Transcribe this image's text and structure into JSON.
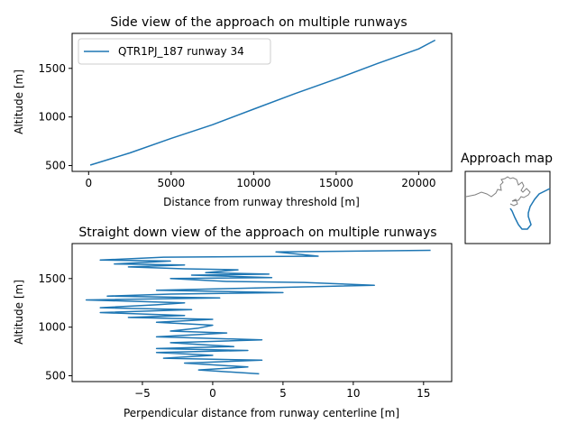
{
  "colors": {
    "series": "#1f77b4",
    "coastline": "#808080",
    "axes": "#000000"
  },
  "chart_data": [
    {
      "type": "line",
      "title": "Side view of the approach on multiple runways",
      "xlabel": "Distance from runway threshold [m]",
      "ylabel": "Altitude [m]",
      "xlim": [
        -1000,
        22000
      ],
      "ylim": [
        440,
        1860
      ],
      "xticks": [
        0,
        5000,
        10000,
        15000,
        20000
      ],
      "yticks": [
        500,
        1000,
        1500
      ],
      "legend": "top-left",
      "grid": false,
      "series": [
        {
          "name": "QTR1PJ_187 runway 34",
          "x": [
            100,
            2500,
            5000,
            7500,
            10000,
            12500,
            15000,
            17500,
            20000,
            21000
          ],
          "y": [
            505,
            630,
            780,
            920,
            1080,
            1240,
            1390,
            1550,
            1700,
            1790
          ]
        }
      ]
    },
    {
      "type": "line",
      "title": "Straight down view of the approach on multiple runways",
      "xlabel": "Perpendicular distance from runway centerline [m]",
      "ylabel": "Altitude [m]",
      "xlim": [
        -10,
        17
      ],
      "ylim": [
        440,
        1860
      ],
      "xticks": [
        -5,
        0,
        5,
        10,
        15
      ],
      "yticks": [
        500,
        1000,
        1500
      ],
      "grid": false,
      "series": [
        {
          "x": [
            15.5,
            4.5,
            7.5,
            -3.5,
            -8,
            -3,
            -7,
            -2,
            -6,
            -2,
            1.8,
            -0.5,
            4,
            -1.5,
            4.2,
            -3,
            1,
            6.5,
            11.5,
            2,
            -4,
            5,
            -3,
            -7.5,
            0.5,
            -9,
            -2,
            -4,
            -8,
            -1.5,
            -8,
            -2,
            -6,
            0,
            -4,
            0,
            -1,
            -3,
            1,
            -4,
            3.5,
            -3,
            1.5,
            -4,
            2.5,
            -4,
            0,
            -3.5,
            3.5,
            -2,
            2.5,
            -1,
            3.3
          ],
          "y": [
            1790,
            1775,
            1730,
            1720,
            1690,
            1680,
            1650,
            1640,
            1620,
            1600,
            1590,
            1560,
            1545,
            1535,
            1510,
            1500,
            1470,
            1460,
            1430,
            1400,
            1380,
            1355,
            1340,
            1320,
            1300,
            1280,
            1250,
            1230,
            1200,
            1180,
            1150,
            1120,
            1100,
            1080,
            1050,
            1020,
            990,
            960,
            940,
            900,
            870,
            840,
            800,
            780,
            760,
            740,
            710,
            680,
            660,
            630,
            590,
            560,
            520
          ]
        }
      ]
    },
    {
      "type": "line",
      "title": "Approach map",
      "grid": false,
      "series": []
    }
  ]
}
